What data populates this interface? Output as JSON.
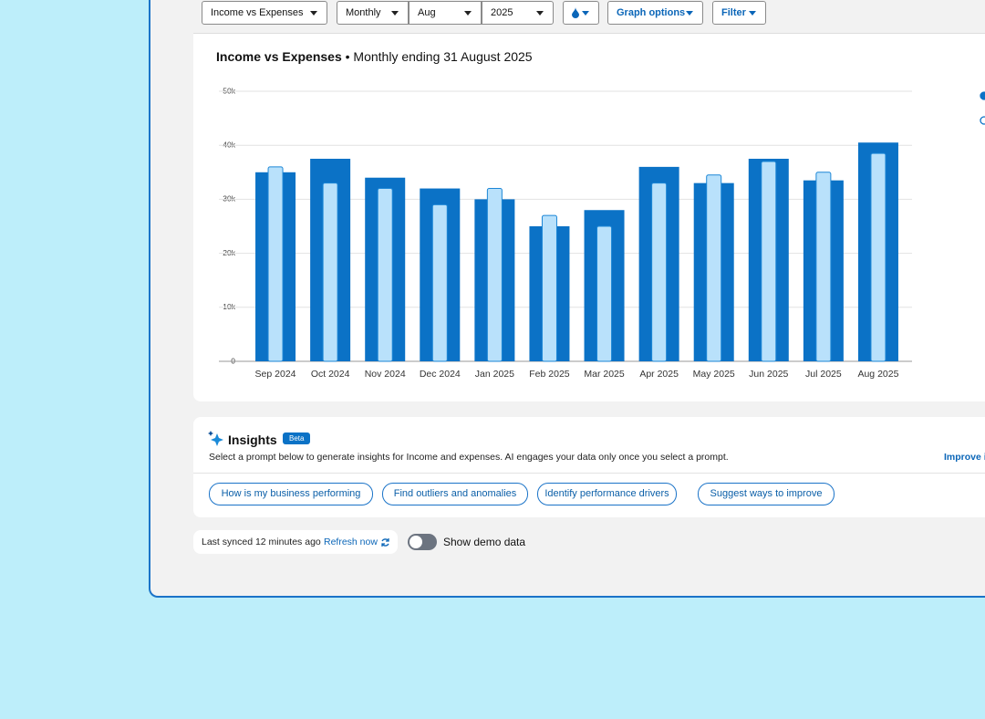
{
  "toolbar": {
    "report": "Income vs Expenses",
    "period": "Monthly",
    "month": "Aug",
    "year": "2025",
    "graph_options": "Graph options",
    "filter": "Filter"
  },
  "chart_data": {
    "type": "bar",
    "title": "Income vs Expenses",
    "subtitle": "• Monthly ending 31 August 2025",
    "categories": [
      "Sep 2024",
      "Oct 2024",
      "Nov 2024",
      "Dec 2024",
      "Jan 2025",
      "Feb 2025",
      "Mar 2025",
      "Apr 2025",
      "May 2025",
      "Jun 2025",
      "Jul 2025",
      "Aug 2025"
    ],
    "series": [
      {
        "color": "#0b72c6",
        "values": [
          35000,
          37500,
          34000,
          32000,
          30000,
          25000,
          28000,
          36000,
          33000,
          37500,
          33500,
          40500
        ]
      },
      {
        "color": "#b9e1fb",
        "values": [
          36000,
          33000,
          32000,
          29000,
          32000,
          27000,
          25000,
          33000,
          34500,
          37000,
          35000,
          38500
        ]
      }
    ],
    "ylim": [
      0,
      50000
    ],
    "yticks": [
      0,
      {
        "value": 10000,
        "label": "10k"
      },
      {
        "value": 20000,
        "label": "20k"
      },
      {
        "value": 30000,
        "label": "30k"
      },
      {
        "value": 40000,
        "label": "40k"
      },
      {
        "value": 50000,
        "label": "50k"
      }
    ],
    "grid": true
  },
  "insights": {
    "title": "Insights",
    "badge": "Beta",
    "description": "Select a prompt below to generate insights for Income and expenses. AI engages your data only once you select a prompt.",
    "improve": "Improve i",
    "prompts": [
      "How is my business performing",
      "Find outliers and anomalies",
      "Identify performance drivers",
      "Suggest ways to improve"
    ]
  },
  "footer": {
    "synced": "Last synced 12 minutes ago",
    "refresh": "Refresh now",
    "demo": "Show demo data"
  }
}
